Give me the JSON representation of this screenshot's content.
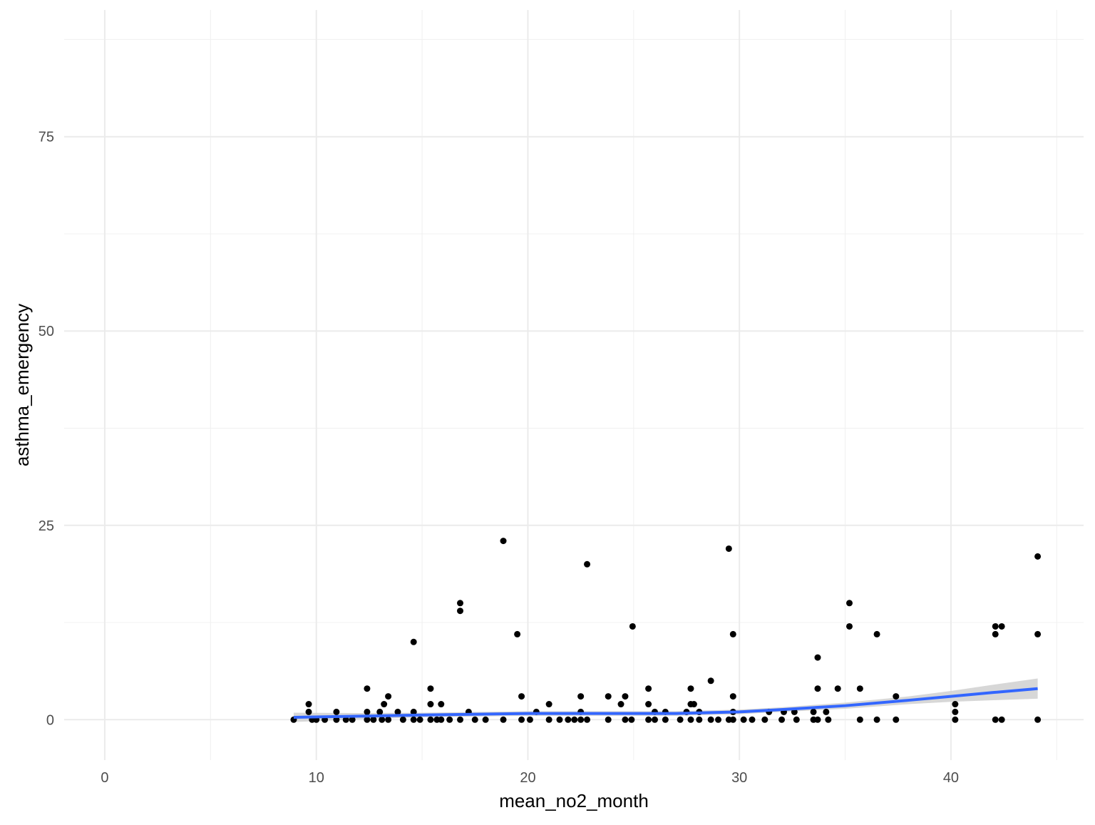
{
  "chart_data": {
    "type": "scatter",
    "x_label": "mean_no2_month",
    "y_label": "asthma_emergency",
    "xlim": [
      -1.92,
      46.27
    ],
    "ylim": [
      -5.2,
      91.3
    ],
    "xticks": [
      0,
      10,
      20,
      30,
      40
    ],
    "yticks": [
      0,
      25,
      50,
      75
    ],
    "x_minor_grid": [
      5,
      15,
      25,
      35,
      45
    ],
    "y_minor_grid": [
      12.5,
      37.5,
      62.5,
      87.5
    ],
    "grid": true,
    "series": [
      {
        "name": "points",
        "color": "#000000",
        "x": [
          8.93,
          9.64,
          9.64,
          9.8,
          10,
          10.4,
          10.95,
          10.95,
          11.4,
          11.7,
          12.4,
          12.4,
          12.4,
          12.7,
          13,
          13.1,
          13.2,
          13.4,
          13.4,
          13.85,
          14.1,
          14.6,
          14.6,
          14.6,
          14.9,
          15.4,
          15.4,
          15.4,
          15.7,
          15.9,
          15.9,
          16.3,
          16.8,
          16.8,
          16.8,
          17.2,
          17.5,
          18,
          18.84,
          18.84,
          19.5,
          19.7,
          19.7,
          20.1,
          20.4,
          21,
          21,
          21.5,
          21.9,
          22.2,
          22.5,
          22.5,
          22.5,
          22.8,
          22.8,
          23.8,
          23.8,
          24.4,
          24.6,
          24.6,
          24.95,
          24.9,
          25.7,
          25.7,
          25.7,
          26,
          26,
          26.5,
          26.5,
          27.2,
          27.5,
          27.7,
          27.7,
          27.7,
          27.85,
          28.1,
          28.1,
          28.65,
          28.65,
          29,
          29.5,
          29.5,
          29.7,
          29.7,
          29.7,
          29.7,
          30.2,
          30.6,
          31.2,
          31.4,
          32,
          32.1,
          32.6,
          32.7,
          33.5,
          33.5,
          33.7,
          33.7,
          33.7,
          34.1,
          34.2,
          34.65,
          35.2,
          35.2,
          35.7,
          35.7,
          36.5,
          36.5,
          37.4,
          37.4,
          40.2,
          40.2,
          40.2,
          42.1,
          42.1,
          42.1,
          42.4,
          42.4,
          44.1,
          44.1,
          44.1
        ],
        "values": [
          0,
          1,
          2,
          0,
          0,
          0,
          1,
          0,
          0,
          0,
          4,
          1,
          0,
          0,
          1,
          0,
          2,
          3,
          0,
          1,
          0,
          10,
          1,
          0,
          0,
          4,
          2,
          0,
          0,
          2,
          0,
          0,
          15,
          14,
          0,
          1,
          0,
          0,
          23,
          0,
          11,
          3,
          0,
          0,
          1,
          2,
          0,
          0,
          0,
          0,
          3,
          1,
          0,
          20,
          0,
          3,
          0,
          2,
          3,
          0,
          12,
          0,
          4,
          2,
          0,
          1,
          0,
          1,
          0,
          0,
          1,
          4,
          2,
          0,
          2,
          1,
          0,
          5,
          0,
          0,
          22,
          0,
          11,
          3,
          1,
          0,
          0,
          0,
          0,
          1,
          0,
          1,
          1,
          0,
          1,
          0,
          8,
          4,
          0,
          1,
          0,
          4,
          15,
          12,
          4,
          0,
          11,
          0,
          3,
          0,
          2,
          1,
          0,
          12,
          11,
          0,
          12,
          0,
          21,
          11,
          0
        ]
      }
    ],
    "smooth": {
      "color": "#3366ff",
      "band_color": "#d3d3d3",
      "x": [
        8.93,
        12,
        15,
        20,
        25,
        27,
        30,
        32,
        35,
        38,
        40,
        42,
        44.1
      ],
      "values": [
        0.3,
        0.45,
        0.6,
        0.8,
        0.8,
        0.8,
        1.0,
        1.3,
        1.8,
        2.5,
        3.0,
        3.5,
        4.0
      ],
      "lower": [
        -0.3,
        0.05,
        0.3,
        0.5,
        0.5,
        0.5,
        0.7,
        1.0,
        1.4,
        2.0,
        2.3,
        2.5,
        2.7
      ],
      "upper": [
        0.9,
        0.85,
        0.9,
        1.1,
        1.1,
        1.1,
        1.3,
        1.6,
        2.2,
        3.0,
        3.7,
        4.5,
        5.3
      ]
    }
  }
}
